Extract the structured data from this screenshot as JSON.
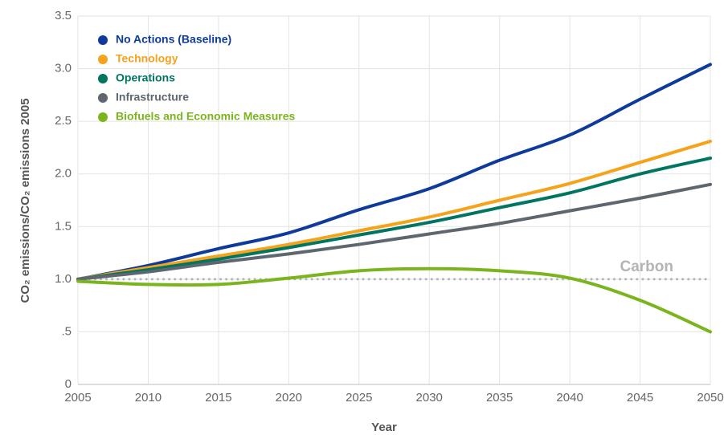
{
  "chart_data": {
    "type": "line",
    "y_label": "CO₂ emissions/CO₂ emissions 2005",
    "x_label": "Year",
    "x": [
      2005,
      2010,
      2015,
      2020,
      2025,
      2030,
      2035,
      2040,
      2045,
      2050
    ],
    "series": [
      {
        "name": "No Actions (Baseline)",
        "color": "#0e3b9b",
        "values": [
          1.0,
          1.13,
          1.29,
          1.44,
          1.66,
          1.86,
          2.13,
          2.37,
          2.71,
          3.04
        ]
      },
      {
        "name": "Technology",
        "color": "#f7a21b",
        "values": [
          1.0,
          1.11,
          1.22,
          1.33,
          1.46,
          1.59,
          1.75,
          1.91,
          2.11,
          2.31
        ]
      },
      {
        "name": "Operations",
        "color": "#007560",
        "values": [
          1.0,
          1.09,
          1.19,
          1.3,
          1.42,
          1.54,
          1.68,
          1.82,
          2.0,
          2.15
        ]
      },
      {
        "name": "Infrastructure",
        "color": "#5e6670",
        "values": [
          1.0,
          1.07,
          1.16,
          1.24,
          1.33,
          1.43,
          1.53,
          1.65,
          1.77,
          1.9
        ]
      },
      {
        "name": "Biofuels and Economic Measures",
        "color": "#7ab51d",
        "values": [
          0.98,
          0.95,
          0.95,
          1.01,
          1.08,
          1.1,
          1.08,
          1.01,
          0.8,
          0.5
        ]
      }
    ],
    "reference_line": {
      "value": 1,
      "label": "Carbon",
      "color": "#b4b4b4"
    },
    "xlim": [
      2005,
      2050
    ],
    "xticks": [
      2005,
      2010,
      2015,
      2020,
      2025,
      2030,
      2035,
      2040,
      2045,
      2050
    ],
    "ylim": [
      0,
      3.5
    ],
    "yticks": [
      0,
      {
        "value": 0.5,
        "label": ".5"
      },
      {
        "value": 1,
        "label": "1.0"
      },
      {
        "value": 1.5,
        "label": "1.5"
      },
      {
        "value": 2,
        "label": "2.0"
      },
      {
        "value": 2.5,
        "label": "2.5"
      },
      {
        "value": 3,
        "label": "3.0"
      },
      {
        "value": 3.5,
        "label": "3.5"
      }
    ],
    "grid": true,
    "legend": "top-left"
  }
}
